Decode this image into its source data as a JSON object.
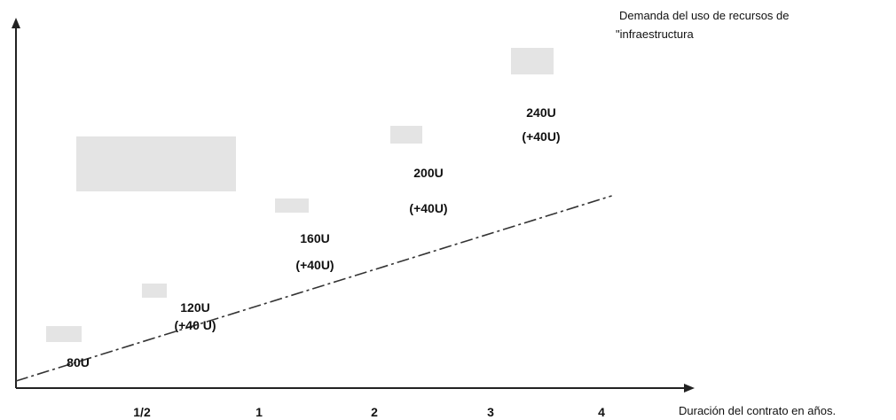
{
  "chart_data": {
    "type": "line",
    "series_label": "Demanda del uso de recursos de\n\"infraestructura",
    "xlabel": "Duración del contrato en años.",
    "categories": [
      "1/2",
      "1",
      "2",
      "3",
      "4"
    ],
    "line": {
      "x": [
        0,
        5.2
      ],
      "y": [
        40,
        315
      ]
    },
    "annotations": [
      {
        "at": 0.2,
        "level": 18,
        "lines": [
          "80U"
        ]
      },
      {
        "at": 0.5,
        "level": 88,
        "lines": [
          "120U",
          "(+40 U)"
        ]
      },
      {
        "at": 1.5,
        "level": 168,
        "lines": [
          "160U",
          "(+40U)"
        ]
      },
      {
        "at": 2.5,
        "level": 230,
        "lines": [
          "200U",
          "(+40U)"
        ]
      },
      {
        "at": 3.5,
        "level": 305,
        "lines": [
          "240U",
          "(+40U)"
        ]
      }
    ],
    "grid": false,
    "colors": {
      "axis": "#222222",
      "line": "#333333",
      "ghost": "#e4e4e4"
    }
  }
}
